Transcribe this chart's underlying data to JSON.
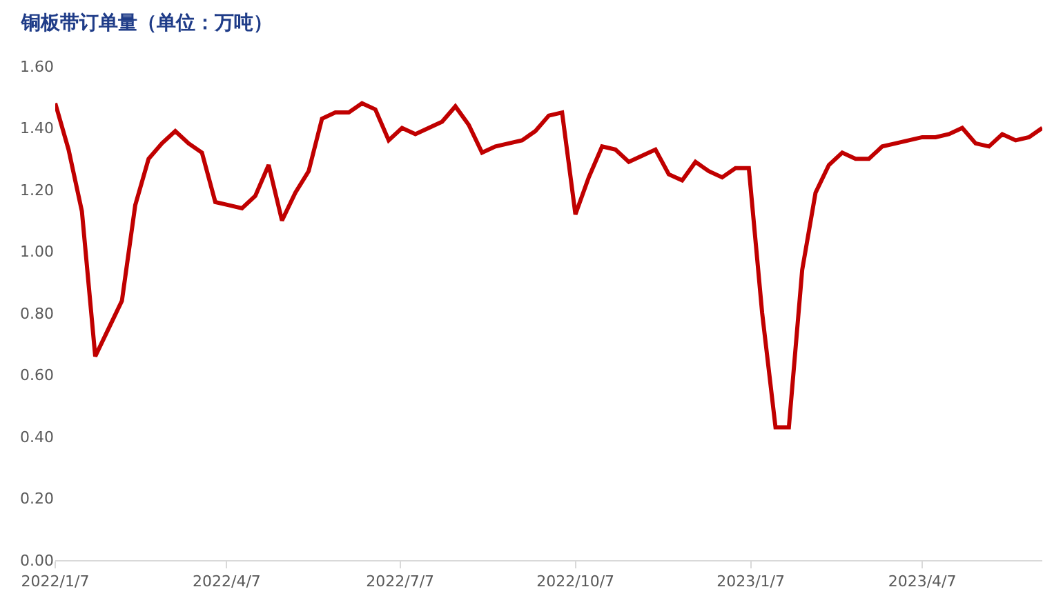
{
  "chart_data": {
    "type": "line",
    "title": "铜板带订单量（单位：万吨）",
    "x": [
      "2022-01-07",
      "2022-01-14",
      "2022-01-21",
      "2022-01-28",
      "2022-02-04",
      "2022-02-11",
      "2022-02-18",
      "2022-02-25",
      "2022-03-04",
      "2022-03-11",
      "2022-03-18",
      "2022-03-25",
      "2022-04-01",
      "2022-04-08",
      "2022-04-15",
      "2022-04-22",
      "2022-04-29",
      "2022-05-06",
      "2022-05-13",
      "2022-05-20",
      "2022-05-27",
      "2022-06-03",
      "2022-06-10",
      "2022-06-17",
      "2022-06-24",
      "2022-07-01",
      "2022-07-08",
      "2022-07-15",
      "2022-07-22",
      "2022-07-29",
      "2022-08-05",
      "2022-08-12",
      "2022-08-19",
      "2022-08-26",
      "2022-09-02",
      "2022-09-09",
      "2022-09-16",
      "2022-09-23",
      "2022-09-30",
      "2022-10-07",
      "2022-10-14",
      "2022-10-21",
      "2022-10-28",
      "2022-11-04",
      "2022-11-11",
      "2022-11-18",
      "2022-11-25",
      "2022-12-02",
      "2022-12-09",
      "2022-12-16",
      "2022-12-23",
      "2022-12-30",
      "2023-01-06",
      "2023-01-13",
      "2023-01-20",
      "2023-01-27",
      "2023-02-03",
      "2023-02-10",
      "2023-02-17",
      "2023-02-24",
      "2023-03-03",
      "2023-03-10",
      "2023-03-17",
      "2023-03-24",
      "2023-03-31",
      "2023-04-07",
      "2023-04-14",
      "2023-04-21",
      "2023-04-28",
      "2023-05-05",
      "2023-05-12",
      "2023-05-19",
      "2023-05-26",
      "2023-06-02",
      "2023-06-09"
    ],
    "series": [
      {
        "color": "#c00000",
        "values": [
          1.48,
          1.33,
          1.13,
          0.66,
          0.75,
          0.84,
          1.15,
          1.3,
          1.35,
          1.39,
          1.35,
          1.32,
          1.16,
          1.15,
          1.14,
          1.18,
          1.28,
          1.1,
          1.19,
          1.26,
          1.43,
          1.45,
          1.45,
          1.48,
          1.46,
          1.36,
          1.4,
          1.38,
          1.4,
          1.42,
          1.47,
          1.41,
          1.32,
          1.34,
          1.35,
          1.36,
          1.39,
          1.44,
          1.45,
          1.12,
          1.24,
          1.34,
          1.33,
          1.29,
          1.31,
          1.33,
          1.25,
          1.23,
          1.29,
          1.26,
          1.24,
          1.27,
          1.27,
          0.8,
          0.43,
          0.43,
          0.94,
          1.19,
          1.28,
          1.32,
          1.3,
          1.3,
          1.34,
          1.35,
          1.36,
          1.37,
          1.37,
          1.38,
          1.4,
          1.35,
          1.34,
          1.38,
          1.36,
          1.37,
          1.4
        ]
      }
    ],
    "xlim": [
      "2022-01-07",
      "2023-06-09"
    ],
    "xticks": [
      {
        "value": "2022-01-07",
        "label": "2022/1/7"
      },
      {
        "value": "2022-04-07",
        "label": "2022/4/7"
      },
      {
        "value": "2022-07-07",
        "label": "2022/7/7"
      },
      {
        "value": "2022-10-07",
        "label": "2022/10/7"
      },
      {
        "value": "2023-01-07",
        "label": "2023/1/7"
      },
      {
        "value": "2023-04-07",
        "label": "2023/4/7"
      }
    ],
    "ylim": [
      0,
      1.6
    ],
    "yticks": [
      {
        "value": 0,
        "label": "0.00"
      },
      {
        "value": 0.2,
        "label": "0.20"
      },
      {
        "value": 0.4,
        "label": "0.40"
      },
      {
        "value": 0.6,
        "label": "0.60"
      },
      {
        "value": 0.8,
        "label": "0.80"
      },
      {
        "value": 1.0,
        "label": "1.00"
      },
      {
        "value": 1.2,
        "label": "1.20"
      },
      {
        "value": 1.4,
        "label": "1.40"
      },
      {
        "value": 1.6,
        "label": "1.60"
      }
    ],
    "grid": false,
    "legend": false,
    "marker": "none",
    "line_style": "solid"
  }
}
